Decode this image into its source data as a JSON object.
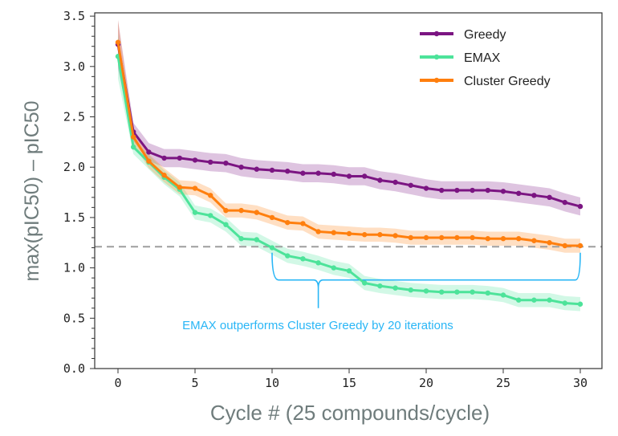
{
  "chart_data": {
    "type": "line",
    "xlabel": "Cycle # (25 compounds/cycle)",
    "ylabel": "max(pIC50) – pIC50",
    "xlim": [
      -1.5,
      31.5
    ],
    "ylim": [
      0,
      3.5
    ],
    "xticks": [
      "0",
      "5",
      "10",
      "15",
      "20",
      "25",
      "30"
    ],
    "yticks": [
      "0.0",
      "0.5",
      "1.0",
      "1.5",
      "2.0",
      "2.5",
      "3.0",
      "3.5"
    ],
    "grid": false,
    "legend": "top-right",
    "x": [
      0,
      1,
      2,
      3,
      4,
      5,
      6,
      7,
      8,
      9,
      10,
      11,
      12,
      13,
      14,
      15,
      16,
      17,
      18,
      19,
      20,
      21,
      22,
      23,
      24,
      25,
      26,
      27,
      28,
      29,
      30
    ],
    "series": [
      {
        "name": "Greedy",
        "color": "#7b1582",
        "values": [
          3.22,
          2.35,
          2.15,
          2.09,
          2.09,
          2.07,
          2.05,
          2.04,
          2.0,
          1.98,
          1.97,
          1.96,
          1.94,
          1.94,
          1.93,
          1.91,
          1.91,
          1.87,
          1.85,
          1.82,
          1.79,
          1.77,
          1.77,
          1.77,
          1.77,
          1.76,
          1.74,
          1.72,
          1.7,
          1.65,
          1.61
        ]
      },
      {
        "name": "EMAX",
        "color": "#4de39a",
        "values": [
          3.1,
          2.2,
          2.05,
          1.9,
          1.78,
          1.55,
          1.52,
          1.43,
          1.29,
          1.28,
          1.2,
          1.12,
          1.09,
          1.05,
          1.0,
          0.97,
          0.85,
          0.82,
          0.8,
          0.78,
          0.77,
          0.76,
          0.76,
          0.76,
          0.75,
          0.73,
          0.68,
          0.68,
          0.68,
          0.65,
          0.64
        ]
      },
      {
        "name": "Cluster Greedy",
        "color": "#ff7f0e",
        "values": [
          3.24,
          2.3,
          2.06,
          1.92,
          1.8,
          1.79,
          1.72,
          1.57,
          1.57,
          1.55,
          1.5,
          1.45,
          1.44,
          1.36,
          1.35,
          1.34,
          1.33,
          1.33,
          1.32,
          1.3,
          1.3,
          1.3,
          1.3,
          1.3,
          1.29,
          1.29,
          1.29,
          1.27,
          1.25,
          1.22,
          1.22
        ]
      }
    ],
    "reference_line": {
      "y": 1.21,
      "style": "dashed",
      "color": "#999999"
    },
    "annotation": {
      "text": "EMAX outperforms Cluster Greedy by 20 iterations",
      "color": "#29b6f6",
      "brace_x": [
        10,
        30
      ],
      "brace_y": 0.88,
      "brace_tip_x": 13
    }
  }
}
